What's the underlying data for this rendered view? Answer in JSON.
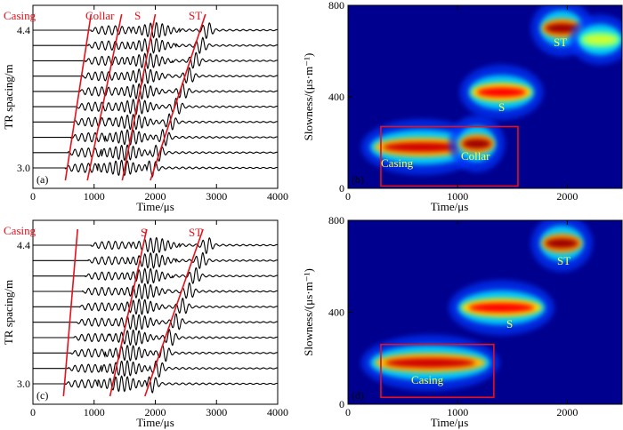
{
  "chart_data": [
    {
      "id": "a",
      "type": "line",
      "panel_label": "(a)",
      "xlabel": "Time/μs",
      "ylabel": "TR spacing/m",
      "xlim": [
        0,
        4000
      ],
      "x_ticks": [
        "0",
        "1000",
        "2000",
        "3000",
        "4000"
      ],
      "y_range": [
        3.0,
        4.4
      ],
      "y_tick_labels": [
        "3.0",
        "4.4"
      ],
      "traces": 10,
      "grid": false,
      "annotations": [
        "Casing",
        "Collar",
        "S",
        "ST"
      ],
      "annotation_color": "#e8101a",
      "arrival_lines": [
        {
          "label": "Casing",
          "start_time": 530,
          "end_time": 950
        },
        {
          "label": "Collar",
          "start_time": 890,
          "end_time": 1450
        },
        {
          "label": "S",
          "start_time": 1460,
          "end_time": 2000
        },
        {
          "label": "ST",
          "start_time": 1920,
          "end_time": 2820
        }
      ]
    },
    {
      "id": "b",
      "type": "heatmap",
      "panel_label": "(b)",
      "xlabel": "Time/μs",
      "ylabel": "Slowness/(μs·m⁻¹)",
      "xlim": [
        0,
        2500
      ],
      "ylim": [
        0,
        800
      ],
      "x_ticks": [
        "0",
        "1000",
        "2000"
      ],
      "y_ticks": [
        "0",
        "400",
        "800"
      ],
      "grid": false,
      "annotations": [
        "Casing",
        "Collar",
        "S",
        "ST"
      ],
      "annotation_color": "#ffff40",
      "box_color": "#e8101a",
      "highlight_box": {
        "t0": 300,
        "t1": 1550,
        "s0": 10,
        "s1": 270
      },
      "blobs": [
        {
          "label": "Casing",
          "t0": 200,
          "t1": 1150,
          "slowness": 180,
          "intensity": 0.95
        },
        {
          "label": "Collar",
          "t0": 1000,
          "t1": 1350,
          "slowness": 195,
          "intensity": 1.0
        },
        {
          "label": "S",
          "t0": 1100,
          "t1": 1700,
          "slowness": 420,
          "intensity": 0.9
        },
        {
          "label": "ST",
          "t0": 1750,
          "t1": 2150,
          "slowness": 700,
          "intensity": 1.0
        },
        {
          "label": "",
          "t0": 2100,
          "t1": 2500,
          "slowness": 650,
          "intensity": 0.6
        }
      ]
    },
    {
      "id": "c",
      "type": "line",
      "panel_label": "(c)",
      "xlabel": "Time/μs",
      "ylabel": "TR spacing/m",
      "xlim": [
        0,
        4000
      ],
      "x_ticks": [
        "0",
        "1000",
        "2000",
        "3000",
        "4000"
      ],
      "y_range": [
        3.0,
        4.4
      ],
      "y_tick_labels": [
        "3.0",
        "4.4"
      ],
      "traces": 10,
      "grid": false,
      "annotations": [
        "Casing",
        "S",
        "ST"
      ],
      "annotation_color": "#e8101a",
      "arrival_lines": [
        {
          "label": "Casing",
          "start_time": 500,
          "end_time": 730
        },
        {
          "label": "S",
          "start_time": 1260,
          "end_time": 1860
        },
        {
          "label": "ST",
          "start_time": 1830,
          "end_time": 2780
        }
      ]
    },
    {
      "id": "d",
      "type": "heatmap",
      "panel_label": "(d)",
      "xlabel": "Time/μs",
      "ylabel": "Slowness/(μs·m⁻¹)",
      "xlim": [
        0,
        2500
      ],
      "ylim": [
        0,
        800
      ],
      "x_ticks": [
        "0",
        "1000",
        "2000"
      ],
      "y_ticks": [
        "0",
        "400",
        "800"
      ],
      "grid": false,
      "annotations": [
        "Casing",
        "S",
        "ST"
      ],
      "annotation_color": "#ffff40",
      "box_color": "#e8101a",
      "highlight_box": {
        "t0": 300,
        "t1": 1330,
        "s0": 30,
        "s1": 260
      },
      "blobs": [
        {
          "label": "Casing",
          "t0": 200,
          "t1": 1300,
          "slowness": 180,
          "intensity": 0.95
        },
        {
          "label": "S",
          "t0": 1000,
          "t1": 1800,
          "slowness": 420,
          "intensity": 0.9
        },
        {
          "label": "ST",
          "t0": 1750,
          "t1": 2150,
          "slowness": 700,
          "intensity": 1.0
        }
      ]
    }
  ]
}
